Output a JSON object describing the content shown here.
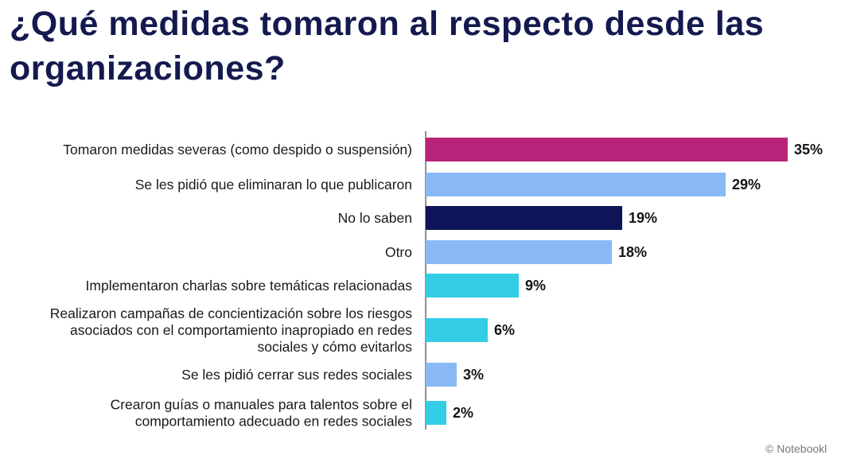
{
  "header": {
    "title": "¿Qué medidas tomaron al respecto desde las organizaciones?"
  },
  "watermark": "© Notebookl",
  "chart_data": {
    "type": "bar",
    "orientation": "horizontal",
    "title": "¿Qué medidas tomaron al respecto desde las organizaciones?",
    "xlabel": "",
    "ylabel": "",
    "xlim": [
      0,
      35
    ],
    "grid": false,
    "legend": "none",
    "categories": [
      [
        "Tomaron medidas severas (como despido o suspensión)"
      ],
      [
        "Se les pidió que eliminaran lo que publicaron"
      ],
      [
        "No lo saben"
      ],
      [
        "Otro"
      ],
      [
        "Implementaron charlas sobre temáticas relacionadas"
      ],
      [
        "Realizaron campañas de concientización sobre los riesgos",
        "asociados con el comportamiento inapropiado en redes",
        "sociales y cómo evitarlos"
      ],
      [
        "Se les pidió cerrar sus redes sociales"
      ],
      [
        "Crearon guías o manuales para talentos sobre el",
        "comportamiento adecuado en redes sociales"
      ]
    ],
    "values": [
      35,
      29,
      19,
      18,
      9,
      6,
      3,
      2
    ],
    "value_labels": [
      "35%",
      "29%",
      "19%",
      "18%",
      "9%",
      "6%",
      "3%",
      "2%"
    ],
    "colors": [
      "#b8237a",
      "#8ab8f5",
      "#0d1457",
      "#8ab8f5",
      "#33cde6",
      "#33cde6",
      "#8ab8f5",
      "#33cde6"
    ],
    "axis_color": "#6b6b6b"
  }
}
